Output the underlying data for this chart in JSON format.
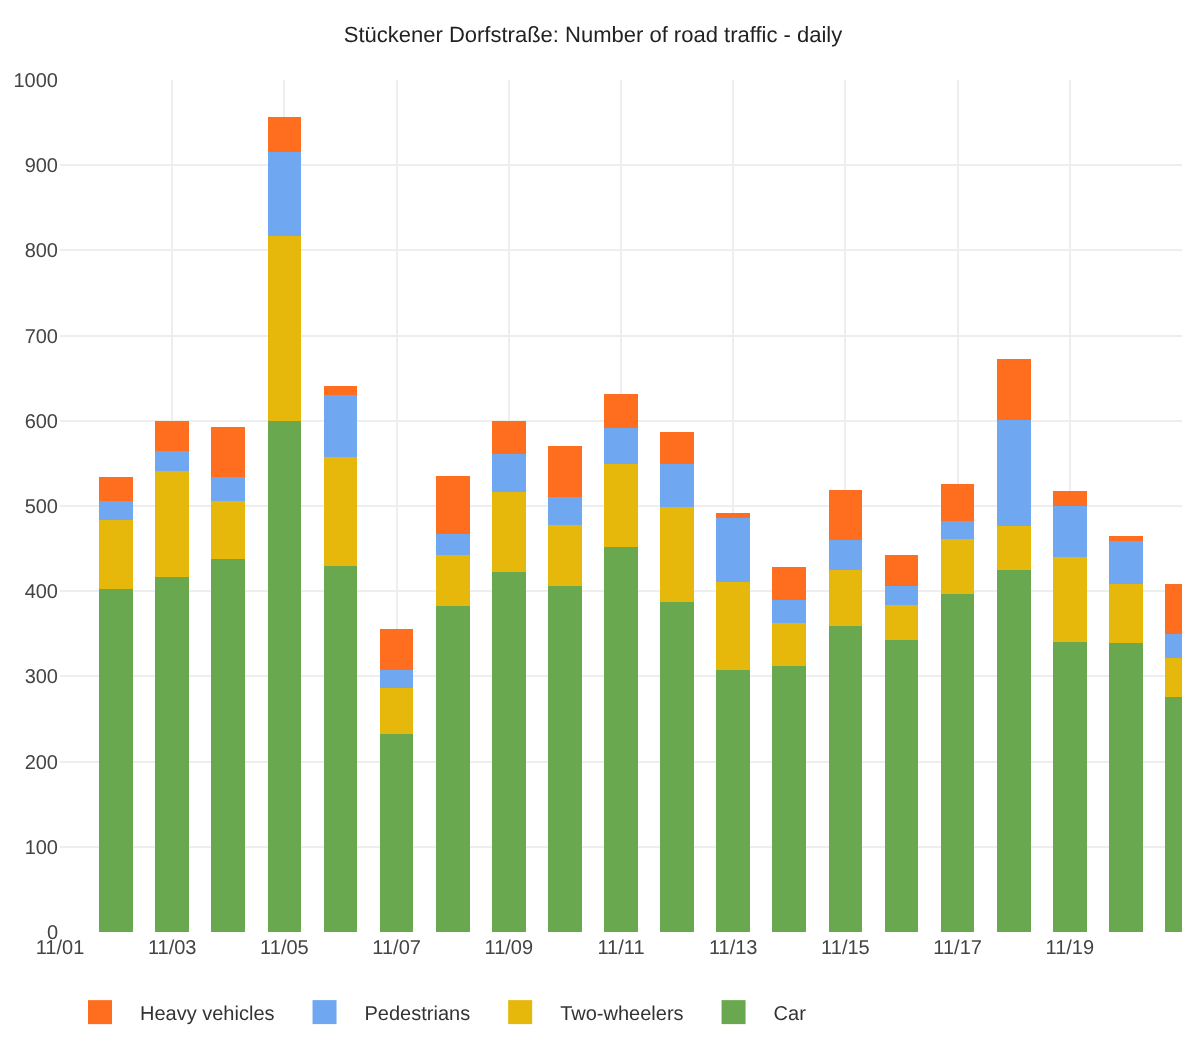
{
  "chart_data": {
    "type": "bar",
    "stacked": true,
    "title": "Stückener Dorfstraße: Number of road traffic - daily",
    "x": [
      "--11-02",
      "--11-03",
      "--11-04",
      "--11-05",
      "--11-06",
      "--11-07",
      "--11-08",
      "--11-09",
      "--11-10",
      "--11-11",
      "--11-12",
      "--11-13",
      "--11-14",
      "--11-15",
      "--11-16",
      "--11-17",
      "--11-18",
      "--11-19",
      "--11-20",
      "--11-21"
    ],
    "series": [
      {
        "name": "Car",
        "color": "#6aa84f",
        "values": [
          403,
          417,
          438,
          600,
          430,
          232,
          383,
          423,
          406,
          452,
          387,
          308,
          312,
          359,
          343,
          397,
          425,
          340,
          339,
          276
        ]
      },
      {
        "name": "Two-wheelers",
        "color": "#e6b80c",
        "values": [
          81,
          124,
          68,
          217,
          128,
          54,
          59,
          93,
          72,
          97,
          112,
          103,
          51,
          66,
          41,
          64,
          52,
          100,
          70,
          46
        ]
      },
      {
        "name": "Pedestrians",
        "color": "#6fa8f0",
        "values": [
          22,
          23,
          28,
          98,
          72,
          22,
          25,
          45,
          33,
          42,
          50,
          77,
          27,
          35,
          22,
          21,
          124,
          60,
          50,
          28
        ]
      },
      {
        "name": "Heavy vehicles",
        "color": "#ff6d1f",
        "values": [
          28,
          36,
          59,
          41,
          11,
          48,
          68,
          39,
          59,
          41,
          38,
          4,
          39,
          59,
          37,
          44,
          72,
          18,
          6,
          58
        ]
      }
    ],
    "xlim": [
      "--11-01",
      "--11-21"
    ],
    "xticks": [
      {
        "value": "--11-01",
        "label": "11/01"
      },
      {
        "value": "--11-03",
        "label": "11/03"
      },
      {
        "value": "--11-05",
        "label": "11/05"
      },
      {
        "value": "--11-07",
        "label": "11/07"
      },
      {
        "value": "--11-09",
        "label": "11/09"
      },
      {
        "value": "--11-11",
        "label": "11/11"
      },
      {
        "value": "--11-13",
        "label": "11/13"
      },
      {
        "value": "--11-15",
        "label": "11/15"
      },
      {
        "value": "--11-17",
        "label": "11/17"
      },
      {
        "value": "--11-19",
        "label": "11/19"
      }
    ],
    "ylim": [
      0,
      1000
    ],
    "yticks": [
      0,
      100,
      200,
      300,
      400,
      500,
      600,
      700,
      800,
      900,
      1000
    ],
    "grid": true,
    "legend": "bottom left"
  }
}
